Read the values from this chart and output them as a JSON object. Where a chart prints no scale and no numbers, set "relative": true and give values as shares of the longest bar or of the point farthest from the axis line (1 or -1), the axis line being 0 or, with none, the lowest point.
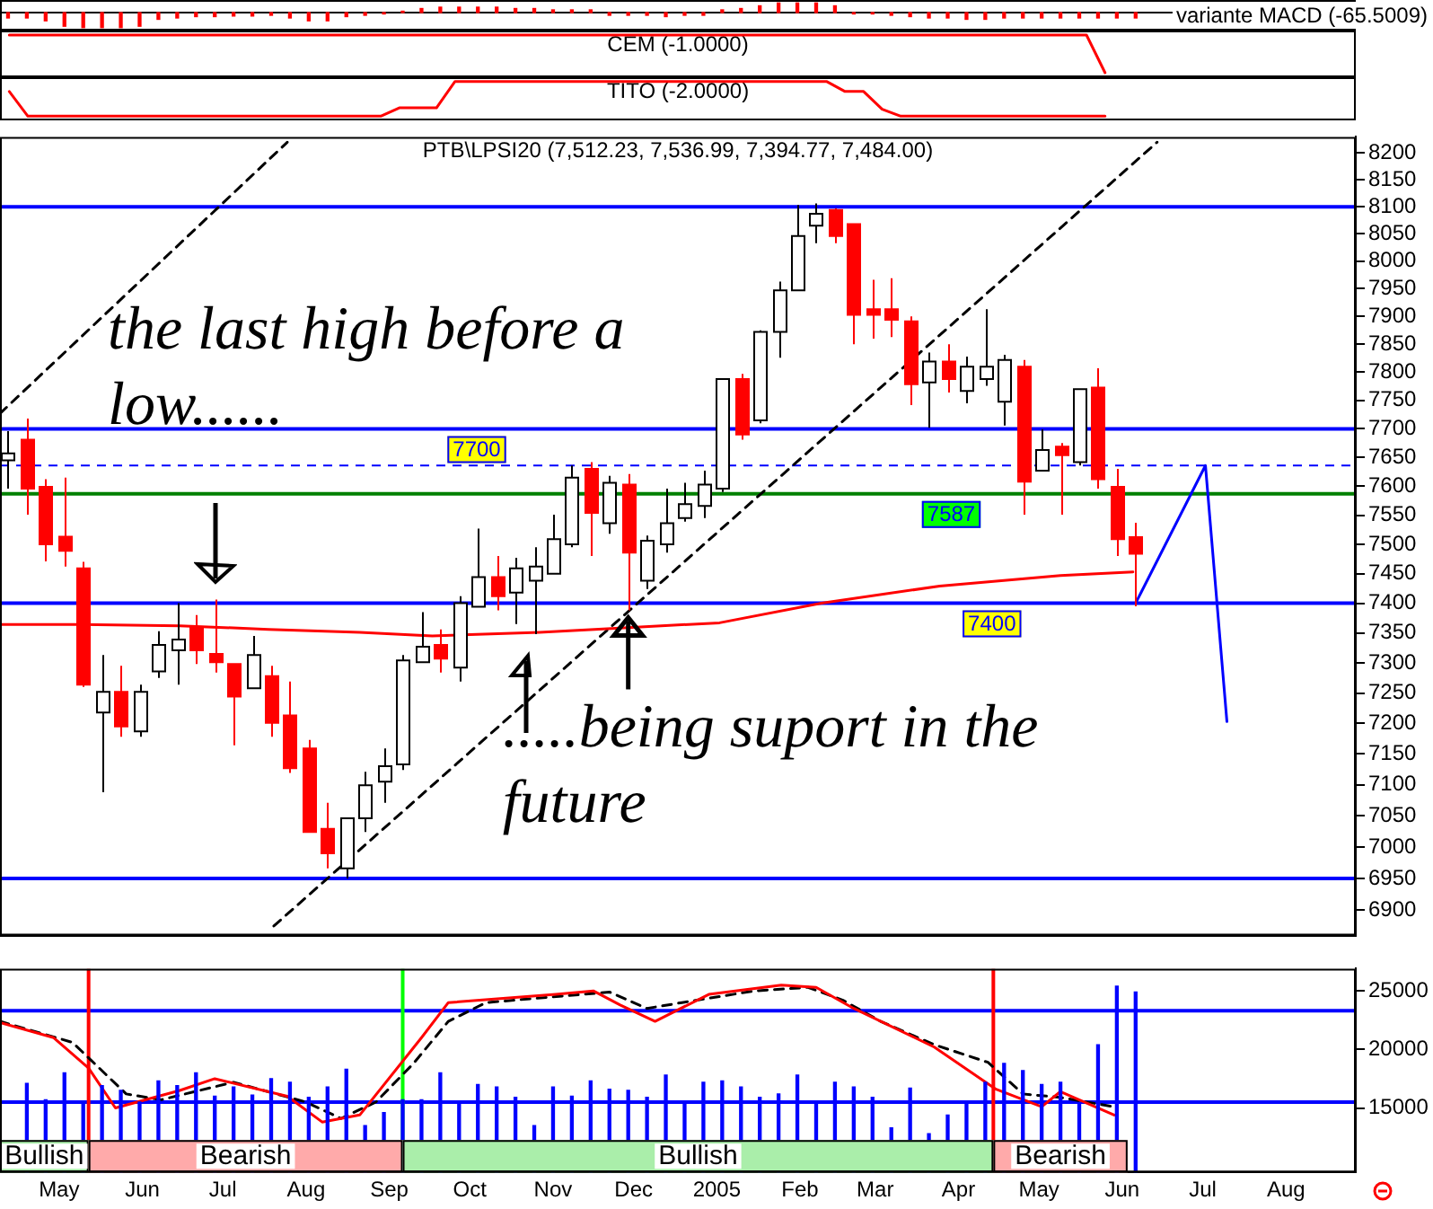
{
  "chart_data": [
    {
      "type": "bar",
      "title": "variante MACD (-65.5009)",
      "relative": true,
      "tick_labels": false,
      "color": "#ff0000",
      "xlim": [
        "2004-04-09",
        "2005-08-27"
      ],
      "x": [
        "2004-04-12",
        "2004-04-19",
        "2004-04-26",
        "2004-05-03",
        "2004-05-10",
        "2004-05-17",
        "2004-05-24",
        "2004-05-31",
        "2004-06-07",
        "2004-06-14",
        "2004-06-21",
        "2004-06-28",
        "2004-07-05",
        "2004-07-12",
        "2004-07-19",
        "2004-07-26",
        "2004-08-02",
        "2004-08-09",
        "2004-08-16",
        "2004-08-23",
        "2004-08-30",
        "2004-09-06",
        "2004-09-13",
        "2004-09-20",
        "2004-09-27",
        "2004-10-04",
        "2004-10-11",
        "2004-10-18",
        "2004-10-25",
        "2004-11-01",
        "2004-11-08",
        "2004-11-15",
        "2004-11-22",
        "2004-11-29",
        "2004-12-06",
        "2004-12-13",
        "2004-12-20",
        "2004-12-27",
        "2005-01-03",
        "2005-01-10",
        "2005-01-17",
        "2005-01-24",
        "2005-01-31",
        "2005-02-07",
        "2005-02-14",
        "2005-02-21",
        "2005-02-28",
        "2005-03-07",
        "2005-03-14",
        "2005-03-21",
        "2005-03-28",
        "2005-04-04",
        "2005-04-11",
        "2005-04-18",
        "2005-04-25",
        "2005-05-02",
        "2005-05-09",
        "2005-05-16",
        "2005-05-23",
        "2005-05-30",
        "2005-06-06"
      ],
      "values": [
        -0.36,
        -0.36,
        -0.55,
        -0.91,
        -1,
        -1,
        -1,
        -0.91,
        -0.45,
        -0.36,
        -0.27,
        -0.27,
        -0.23,
        -0.23,
        -0.18,
        -0.36,
        -0.55,
        -0.55,
        -0.27,
        -0.18,
        -0.09,
        0.09,
        0.27,
        0.36,
        0.36,
        0.36,
        0.36,
        0.27,
        0.27,
        0.18,
        0.18,
        0.18,
        -0.18,
        -0.18,
        -0.18,
        -0.27,
        -0.18,
        -0.18,
        0.18,
        0.27,
        0.45,
        0.64,
        0.64,
        0.64,
        0.45,
        -0.09,
        -0.09,
        -0.18,
        -0.27,
        -0.36,
        -0.36,
        -0.45,
        -0.45,
        -0.36,
        -0.36,
        -0.36,
        -0.36,
        -0.36,
        -0.36,
        -0.36,
        -0.36
      ]
    },
    {
      "type": "line",
      "title": "CEM (-1.0000)",
      "relative": true,
      "tick_labels": false,
      "color": "#ff0000",
      "categories": [
        null,
        null,
        null,
        null,
        null,
        null,
        null,
        null,
        null,
        null,
        null,
        null,
        null,
        null,
        null,
        null,
        null,
        null,
        null,
        null,
        null,
        null,
        null,
        null,
        null,
        null,
        null,
        null,
        null,
        null,
        null,
        null,
        null,
        null,
        null,
        null,
        null,
        null,
        null,
        null,
        null,
        null,
        null,
        null,
        null,
        null,
        null,
        null,
        null,
        null,
        null,
        null,
        null,
        null,
        null,
        null,
        null,
        null,
        null,
        null,
        null,
        null,
        null,
        null,
        null,
        null,
        null,
        null,
        null,
        null,
        null,
        null,
        null
      ],
      "values": [
        1,
        1,
        1,
        1,
        1,
        1,
        1,
        1,
        1,
        1,
        1,
        1,
        1,
        1,
        1,
        1,
        1,
        1,
        1,
        1,
        1,
        1,
        1,
        1,
        1,
        1,
        1,
        1,
        1,
        1,
        1,
        1,
        1,
        1,
        1,
        1,
        1,
        1,
        1,
        1,
        1,
        1,
        1,
        1,
        1,
        1,
        1,
        1,
        1,
        1,
        1,
        1,
        1,
        1,
        1,
        1,
        1,
        1,
        1,
        0,
        null,
        null,
        null,
        null,
        null,
        null,
        null,
        null,
        null,
        null,
        null,
        null,
        null
      ]
    },
    {
      "type": "line",
      "title": "TITO (-2.0000)",
      "relative": true,
      "tick_labels": false,
      "color": "#ff0000",
      "categories": [
        null,
        null,
        null,
        null,
        null,
        null,
        null,
        null,
        null,
        null,
        null,
        null,
        null,
        null,
        null,
        null,
        null,
        null,
        null,
        null,
        null,
        null,
        null,
        null,
        null,
        null,
        null,
        null,
        null,
        null,
        null,
        null,
        null,
        null,
        null,
        null,
        null,
        null,
        null,
        null,
        null,
        null,
        null,
        null,
        null,
        null,
        null,
        null,
        null,
        null,
        null,
        null,
        null,
        null,
        null,
        null,
        null,
        null,
        null,
        null,
        null,
        null,
        null,
        null,
        null,
        null,
        null,
        null,
        null,
        null,
        null,
        null,
        null
      ],
      "values": [
        0.71,
        0,
        0,
        0,
        0,
        0,
        0,
        0,
        0,
        0,
        0,
        0,
        0,
        0,
        0,
        0,
        0,
        0,
        0,
        0,
        0,
        0.24,
        0.24,
        0.24,
        1,
        1,
        1,
        1,
        1,
        1,
        1,
        1,
        1,
        1,
        1,
        1,
        1,
        1,
        1,
        1,
        1,
        1,
        1,
        1,
        1,
        0.71,
        0.71,
        0.2,
        0,
        0,
        0,
        0,
        0,
        0,
        0,
        0,
        0,
        0,
        0,
        0,
        null,
        null,
        null,
        null,
        null,
        null,
        null,
        null,
        null,
        null,
        null,
        null,
        null
      ]
    },
    {
      "type": "candlestick",
      "title": "PTB\\LPSI20 (7,512.23, 7,536.99, 7,394.77, 7,484.00)",
      "log": true,
      "tick_labels": "y",
      "xlim": [
        "2004-04-09",
        "2005-08-27"
      ],
      "ylim": [
        6860,
        8230
      ],
      "yticks": [
        6900,
        6950,
        7000,
        7050,
        7100,
        7150,
        7200,
        7250,
        7300,
        7350,
        7400,
        7450,
        7500,
        7550,
        7600,
        7650,
        7700,
        7750,
        7800,
        7850,
        7900,
        7950,
        8000,
        8050,
        8100,
        8150,
        8200
      ],
      "x": [
        "2004-04-12",
        "2004-04-19",
        "2004-04-26",
        "2004-05-03",
        "2004-05-10",
        "2004-05-17",
        "2004-05-24",
        "2004-05-31",
        "2004-06-07",
        "2004-06-14",
        "2004-06-21",
        "2004-06-28",
        "2004-07-05",
        "2004-07-12",
        "2004-07-19",
        "2004-07-26",
        "2004-08-02",
        "2004-08-09",
        "2004-08-16",
        "2004-08-23",
        "2004-08-30",
        "2004-09-06",
        "2004-09-13",
        "2004-09-20",
        "2004-09-27",
        "2004-10-04",
        "2004-10-11",
        "2004-10-18",
        "2004-10-25",
        "2004-11-01",
        "2004-11-08",
        "2004-11-15",
        "2004-11-22",
        "2004-11-29",
        "2004-12-06",
        "2004-12-13",
        "2004-12-20",
        "2004-12-27",
        "2005-01-03",
        "2005-01-10",
        "2005-01-17",
        "2005-01-24",
        "2005-01-31",
        "2005-02-07",
        "2005-02-14",
        "2005-02-21",
        "2005-02-28",
        "2005-03-07",
        "2005-03-14",
        "2005-03-21",
        "2005-03-28",
        "2005-04-04",
        "2005-04-11",
        "2005-04-18",
        "2005-04-25",
        "2005-05-02",
        "2005-05-09",
        "2005-05-16",
        "2005-05-23",
        "2005-05-30",
        "2005-06-06"
      ],
      "ohlc": [
        [
          7645,
          7696,
          7596,
          7657
        ],
        [
          7681,
          7718,
          7551,
          7596
        ],
        [
          7599,
          7612,
          7471,
          7500
        ],
        [
          7513,
          7615,
          7462,
          7489
        ],
        [
          7459,
          7470,
          7260,
          7264
        ],
        [
          7218,
          7313,
          7088,
          7252
        ],
        [
          7252,
          7295,
          7178,
          7195
        ],
        [
          7187,
          7264,
          7178,
          7252
        ],
        [
          7286,
          7353,
          7275,
          7330
        ],
        [
          7321,
          7400,
          7264,
          7339
        ],
        [
          7359,
          7380,
          7298,
          7321
        ],
        [
          7315,
          7406,
          7284,
          7301
        ],
        [
          7298,
          7298,
          7164,
          7244
        ],
        [
          7258,
          7345,
          7258,
          7313
        ],
        [
          7278,
          7295,
          7178,
          7201
        ],
        [
          7213,
          7269,
          7119,
          7127
        ],
        [
          7159,
          7173,
          7024,
          7024
        ],
        [
          7029,
          7071,
          6966,
          6990
        ],
        [
          6966,
          7046,
          6950,
          7046
        ],
        [
          7046,
          7121,
          7024,
          7099
        ],
        [
          7105,
          7159,
          7071,
          7130
        ],
        [
          7133,
          7313,
          7124,
          7304
        ],
        [
          7301,
          7385,
          7301,
          7327
        ],
        [
          7330,
          7356,
          7284,
          7307
        ],
        [
          7292,
          7412,
          7269,
          7400
        ],
        [
          7394,
          7527,
          7394,
          7444
        ],
        [
          7444,
          7480,
          7388,
          7412
        ],
        [
          7418,
          7477,
          7365,
          7459
        ],
        [
          7438,
          7495,
          7348,
          7462
        ],
        [
          7450,
          7551,
          7450,
          7509
        ],
        [
          7500,
          7636,
          7495,
          7615
        ],
        [
          7630,
          7642,
          7480,
          7554
        ],
        [
          7536,
          7618,
          7518,
          7606
        ],
        [
          7603,
          7621,
          7388,
          7486
        ],
        [
          7438,
          7515,
          7424,
          7506
        ],
        [
          7500,
          7596,
          7486,
          7536
        ],
        [
          7545,
          7606,
          7539,
          7569
        ],
        [
          7566,
          7627,
          7545,
          7603
        ],
        [
          7596,
          7788,
          7590,
          7788
        ],
        [
          7788,
          7797,
          7681,
          7690
        ],
        [
          7715,
          7875,
          7710,
          7872
        ],
        [
          7872,
          7963,
          7826,
          7947
        ],
        [
          7947,
          8103,
          7947,
          8046
        ],
        [
          8065,
          8106,
          8033,
          8087
        ],
        [
          8094,
          8097,
          8033,
          8046
        ],
        [
          8068,
          8068,
          7850,
          7903
        ],
        [
          7913,
          7966,
          7860,
          7903
        ],
        [
          7913,
          7969,
          7863,
          7894
        ],
        [
          7891,
          7900,
          7742,
          7779
        ],
        [
          7782,
          7835,
          7702,
          7819
        ],
        [
          7819,
          7850,
          7764,
          7788
        ],
        [
          7767,
          7828,
          7745,
          7810
        ],
        [
          7788,
          7913,
          7776,
          7810
        ],
        [
          7748,
          7831,
          7706,
          7822
        ],
        [
          7810,
          7822,
          7551,
          7608
        ],
        [
          7627,
          7699,
          7627,
          7663
        ],
        [
          7669,
          7675,
          7551,
          7654
        ],
        [
          7642,
          7770,
          7636,
          7770
        ],
        [
          7773,
          7807,
          7596,
          7612
        ],
        [
          7599,
          7630,
          7480,
          7509
        ],
        [
          7512.23,
          7536.99,
          7394.77,
          7484.0
        ]
      ],
      "series": [
        {
          "type": "line",
          "color": "#ff0000",
          "x": [
            "2004-04-09",
            "2004-05-09",
            "2004-06-15",
            "2004-07-18",
            "2004-08-21",
            "2004-09-17",
            "2004-10-27",
            "2004-11-29",
            "2005-01-02",
            "2005-02-09",
            "2005-03-25",
            "2005-05-09",
            "2005-06-05"
          ],
          "values": [
            7364,
            7364,
            7362,
            7356,
            7351,
            7345,
            7351,
            7359,
            7367,
            7400,
            7429,
            7447,
            7453
          ]
        },
        {
          "type": "line",
          "color": "#000000",
          "line_style": "dashed",
          "x": [
            "2004-07-20",
            "2005-06-14"
          ],
          "values": [
            6875,
            8220
          ]
        },
        {
          "type": "line",
          "color": "#000000",
          "line_style": "dashed",
          "x": [
            "2004-04-09",
            "2004-07-25"
          ],
          "values": [
            7727,
            8220
          ]
        },
        {
          "type": "line",
          "color": "#0000ff",
          "x": [
            "2005-06-06",
            "2005-07-02",
            "2005-07-10"
          ],
          "values": [
            7400,
            7636,
            7203
          ]
        }
      ],
      "ref_lines": [
        {
          "axis": "y",
          "value": 8100,
          "color": "#0000ff"
        },
        {
          "axis": "y",
          "value": 7700,
          "label": "7700",
          "color": "#0000ff"
        },
        {
          "axis": "y",
          "value": 7636,
          "color": "#0000ff",
          "line_style": "dashed"
        },
        {
          "axis": "y",
          "value": 7587,
          "label": "7587",
          "color": "#008000"
        },
        {
          "axis": "y",
          "value": 7400,
          "label": "7400",
          "color": "#0000ff"
        },
        {
          "axis": "y",
          "value": 6950,
          "color": "#0000ff"
        }
      ],
      "annotations": [
        "the last high before a low......",
        {
          "text": ".....being suport in the future",
          "x": "2004-11-29",
          "y": 7388
        }
      ]
    },
    {
      "type": "bar",
      "color": "#0000ff",
      "xlim": [
        "2004-04-09",
        "2005-08-27"
      ],
      "ylim": [
        9500,
        26900
      ],
      "yticks": [
        15000,
        20000,
        25000
      ],
      "xticks": [
        {
          "value": "2004-05-01",
          "label": "May"
        },
        {
          "value": "2004-06-01",
          "label": "Jun"
        },
        {
          "value": "2004-07-01",
          "label": "Jul"
        },
        {
          "value": "2004-08-01",
          "label": "Aug"
        },
        {
          "value": "2004-09-01",
          "label": "Sep"
        },
        {
          "value": "2004-10-01",
          "label": "Oct"
        },
        {
          "value": "2004-11-01",
          "label": "Nov"
        },
        {
          "value": "2004-12-01",
          "label": "Dec"
        },
        {
          "value": "2005-01-01",
          "label": "2005"
        },
        {
          "value": "2005-02-01",
          "label": "Feb"
        },
        {
          "value": "2005-03-01",
          "label": "Mar"
        },
        {
          "value": "2005-04-01",
          "label": "Apr"
        },
        {
          "value": "2005-05-01",
          "label": "May"
        },
        {
          "value": "2005-06-01",
          "label": "Jun"
        },
        {
          "value": "2005-07-01",
          "label": "Jul"
        },
        {
          "value": "2005-08-01",
          "label": "Aug"
        }
      ],
      "x": [
        "2004-04-19",
        "2004-04-26",
        "2004-05-03",
        "2004-05-10",
        "2004-05-17",
        "2004-05-24",
        "2004-05-31",
        "2004-06-07",
        "2004-06-14",
        "2004-06-21",
        "2004-06-28",
        "2004-07-05",
        "2004-07-12",
        "2004-07-19",
        "2004-07-26",
        "2004-08-02",
        "2004-08-09",
        "2004-08-16",
        "2004-08-23",
        "2004-08-30",
        "2004-09-06",
        "2004-09-13",
        "2004-09-20",
        "2004-09-27",
        "2004-10-04",
        "2004-10-11",
        "2004-10-18",
        "2004-10-25",
        "2004-11-01",
        "2004-11-08",
        "2004-11-15",
        "2004-11-22",
        "2004-11-29",
        "2004-12-06",
        "2004-12-13",
        "2004-12-20",
        "2004-12-27",
        "2005-01-03",
        "2005-01-10",
        "2005-01-17",
        "2005-01-24",
        "2005-01-31",
        "2005-02-07",
        "2005-02-14",
        "2005-02-21",
        "2005-02-28",
        "2005-03-07",
        "2005-03-14",
        "2005-03-21",
        "2005-03-28",
        "2005-04-04",
        "2005-04-11",
        "2005-04-18",
        "2005-04-25",
        "2005-05-02",
        "2005-05-09",
        "2005-05-16",
        "2005-05-23",
        "2005-05-30",
        "2005-06-06"
      ],
      "values": [
        17100,
        15700,
        18000,
        15500,
        16900,
        16500,
        15500,
        17300,
        16900,
        18000,
        16000,
        16800,
        16100,
        17500,
        17200,
        15900,
        16800,
        18300,
        13500,
        14600,
        15700,
        15700,
        18000,
        15500,
        17000,
        16800,
        15900,
        13500,
        16800,
        16000,
        17300,
        16600,
        16500,
        15900,
        17800,
        15500,
        17200,
        17300,
        16800,
        15900,
        16200,
        17800,
        15500,
        17200,
        16800,
        15900,
        13300,
        16700,
        12800,
        14400,
        15500,
        17200,
        18800,
        18200,
        17000,
        17200,
        15300,
        20400,
        25400,
        24900
      ],
      "series": [
        {
          "type": "line",
          "color": "#ff0000",
          "x": [
            "2004-04-09",
            "2004-04-29",
            "2004-05-12",
            "2004-05-22",
            "2004-06-15",
            "2004-06-28",
            "2004-07-25",
            "2004-08-07",
            "2004-08-21",
            "2004-09-13",
            "2004-09-23",
            "2004-11-02",
            "2004-11-16",
            "2004-11-26",
            "2004-12-09",
            "2004-12-29",
            "2005-01-25",
            "2005-02-07",
            "2005-02-21",
            "2005-03-23",
            "2005-04-15",
            "2005-05-02",
            "2005-05-09",
            "2005-05-29"
          ],
          "values": [
            22300,
            21000,
            18400,
            15000,
            16500,
            17500,
            16000,
            13800,
            14400,
            21000,
            24000,
            24700,
            25000,
            23800,
            22400,
            24700,
            25500,
            25300,
            23500,
            20200,
            16600,
            15100,
            16400,
            14400
          ]
        },
        {
          "type": "line",
          "color": "#000000",
          "line_style": "dashed",
          "x": [
            "2004-04-09",
            "2004-05-06",
            "2004-05-26",
            "2004-06-08",
            "2004-07-05",
            "2004-08-01",
            "2004-08-14",
            "2004-08-27",
            "2004-09-10",
            "2004-09-23",
            "2004-10-07",
            "2004-11-22",
            "2004-12-06",
            "2004-12-19",
            "2005-01-15",
            "2005-02-04",
            "2005-02-17",
            "2005-03-03",
            "2005-03-23",
            "2005-04-12",
            "2005-04-25",
            "2005-05-09",
            "2005-05-29"
          ],
          "values": [
            22400,
            20600,
            16200,
            15700,
            17200,
            15500,
            14100,
            15500,
            18800,
            22400,
            24000,
            24900,
            23500,
            24000,
            25000,
            25300,
            24200,
            22400,
            20400,
            18900,
            16200,
            15900,
            15100
          ]
        }
      ],
      "ref_lines": [
        {
          "axis": "y",
          "value": 23300,
          "color": "#0000ff"
        },
        {
          "axis": "y",
          "value": 15500,
          "color": "#0000ff"
        },
        {
          "axis": "x",
          "value": "2004-05-12",
          "color": "#ff0000"
        },
        {
          "axis": "x",
          "value": "2004-09-06",
          "color": "#00ff00"
        },
        {
          "axis": "x",
          "value": "2005-04-14",
          "color": "#ff0000"
        }
      ],
      "bands": [
        {
          "axis": "x",
          "from": "2004-04-09",
          "to": "2004-05-12",
          "label": "Bullish",
          "color": "#00cc00"
        },
        {
          "axis": "x",
          "from": "2004-05-12",
          "to": "2004-09-06",
          "label": "Bearish",
          "color": "#ff0000"
        },
        {
          "axis": "x",
          "from": "2004-09-06",
          "to": "2005-04-14",
          "label": "Bullish",
          "color": "#00cc00"
        },
        {
          "axis": "x",
          "from": "2005-04-14",
          "to": "2005-06-03",
          "label": "Bearish",
          "color": "#ff0000"
        }
      ]
    }
  ]
}
